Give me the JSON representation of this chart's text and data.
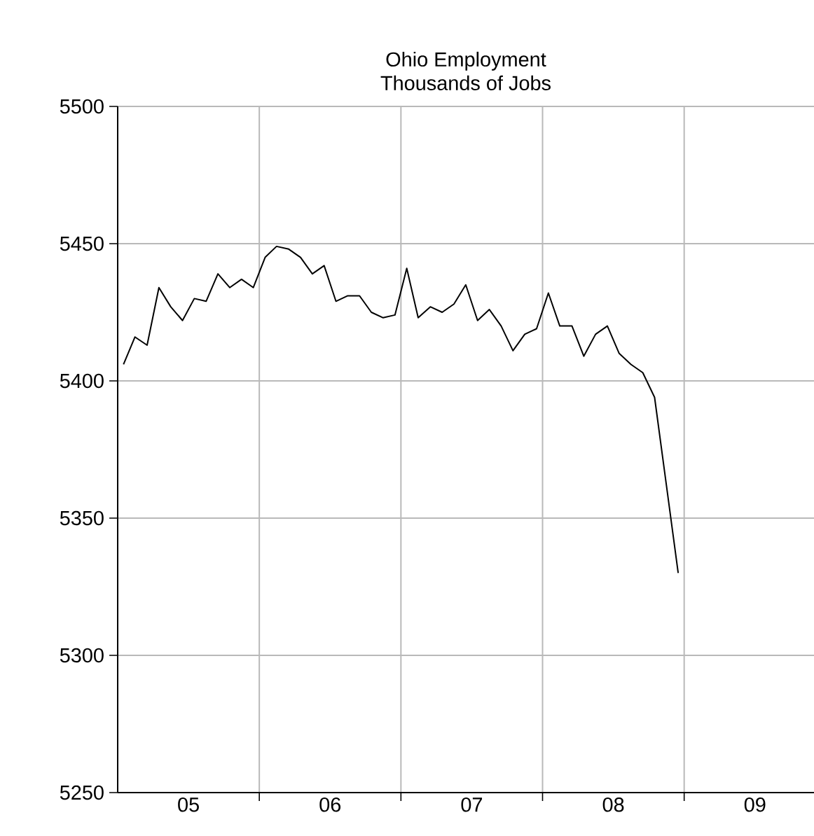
{
  "chart_data": {
    "type": "line",
    "title": "Ohio Employment",
    "subtitle": "Thousands of Jobs",
    "x": [
      "2005-01-16",
      "2005-02-15",
      "2005-03-16",
      "2005-04-16",
      "2005-05-16",
      "2005-06-16",
      "2005-07-16",
      "2005-08-16",
      "2005-09-16",
      "2005-10-16",
      "2005-11-16",
      "2005-12-16",
      "2006-01-16",
      "2006-02-15",
      "2006-03-16",
      "2006-04-16",
      "2006-05-16",
      "2006-06-16",
      "2006-07-16",
      "2006-08-16",
      "2006-09-16",
      "2006-10-16",
      "2006-11-16",
      "2006-12-16",
      "2007-01-16",
      "2007-02-15",
      "2007-03-16",
      "2007-04-16",
      "2007-05-16",
      "2007-06-16",
      "2007-07-16",
      "2007-08-16",
      "2007-09-16",
      "2007-10-16",
      "2007-11-16",
      "2007-12-16",
      "2008-01-16",
      "2008-02-15",
      "2008-03-16",
      "2008-04-16",
      "2008-05-16",
      "2008-06-16",
      "2008-07-16",
      "2008-08-16",
      "2008-09-16",
      "2008-10-16",
      "2008-11-16",
      "2008-12-16"
    ],
    "values": [
      5406,
      5416,
      5413,
      5434,
      5427,
      5422,
      5430,
      5429,
      5439,
      5434,
      5437,
      5434,
      5445,
      5449,
      5448,
      5445,
      5439,
      5442,
      5429,
      5431,
      5431,
      5425,
      5423,
      5424,
      5441,
      5423,
      5427,
      5425,
      5428,
      5435,
      5422,
      5426,
      5420,
      5411,
      5417,
      5419,
      5432,
      5420,
      5420,
      5409,
      5417,
      5420,
      5410,
      5406,
      5403,
      5394,
      5362,
      5330
    ],
    "color": "#000000",
    "xlim": [
      "2005-01-01",
      "2009-12-01"
    ],
    "xticks": [
      {
        "value": "2005-07-01",
        "label": "05"
      },
      {
        "value": "2006-01-01",
        "label": null
      },
      {
        "value": "2006-07-01",
        "label": "06"
      },
      {
        "value": "2007-01-01",
        "label": null
      },
      {
        "value": "2007-07-01",
        "label": "07"
      },
      {
        "value": "2008-01-01",
        "label": null
      },
      {
        "value": "2008-07-01",
        "label": "08"
      },
      {
        "value": "2009-01-01",
        "label": null
      },
      {
        "value": "2009-07-01",
        "label": "09"
      }
    ],
    "ylim": [
      5250,
      5500
    ],
    "yticks": [
      5250,
      5300,
      5350,
      5400,
      5450,
      5500
    ],
    "grid": true,
    "marker": "none",
    "line_style": "solid"
  }
}
